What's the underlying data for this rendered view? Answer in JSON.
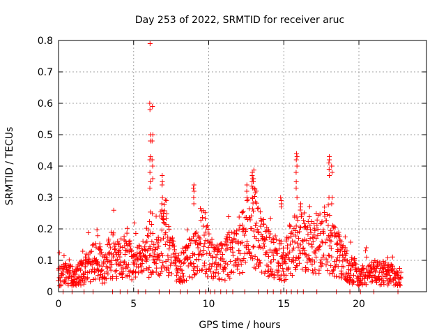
{
  "chart_data": {
    "type": "scatter",
    "title": "Day 253 of 2022, SRMTID for receiver aruc",
    "xlabel": "GPS time / hours",
    "ylabel": "SRMTID / TECUs",
    "xlim": [
      0,
      24.5
    ],
    "ylim": [
      0,
      0.8
    ],
    "xticks": [
      0,
      5,
      10,
      15,
      20
    ],
    "yticks": [
      0,
      0.1,
      0.2,
      0.3,
      0.4,
      0.5,
      0.6,
      0.7,
      0.8
    ],
    "xtick_labels": [
      "0",
      "5",
      "10",
      "15",
      "20"
    ],
    "ytick_labels": [
      "0",
      "0.1",
      "0.2",
      "0.3",
      "0.4",
      "0.5",
      "0.6",
      "0.7",
      "0.8"
    ],
    "grid": true,
    "marker": "+",
    "color": "#ff0000",
    "envelope": {
      "x": [
        0,
        0.5,
        1,
        1.5,
        2,
        2.5,
        3,
        3.5,
        4,
        4.5,
        5,
        5.5,
        6,
        6.3,
        6.6,
        7,
        7.5,
        8,
        8.5,
        9,
        9.5,
        10,
        10.5,
        11,
        11.5,
        12,
        12.5,
        13,
        13.5,
        14,
        14.5,
        15,
        15.5,
        16,
        16.5,
        17,
        17.5,
        18,
        18.5,
        19,
        19.5,
        20,
        20.5,
        21,
        21.5,
        22,
        22.5,
        22.8
      ],
      "y": [
        0.05,
        0.055,
        0.05,
        0.06,
        0.08,
        0.1,
        0.07,
        0.12,
        0.1,
        0.13,
        0.08,
        0.1,
        0.13,
        0.17,
        0.13,
        0.18,
        0.11,
        0.08,
        0.09,
        0.13,
        0.17,
        0.12,
        0.09,
        0.1,
        0.12,
        0.14,
        0.2,
        0.22,
        0.15,
        0.12,
        0.11,
        0.09,
        0.14,
        0.16,
        0.15,
        0.14,
        0.16,
        0.15,
        0.13,
        0.09,
        0.07,
        0.05,
        0.05,
        0.06,
        0.06,
        0.055,
        0.05,
        0.05
      ]
    },
    "spikes": [
      {
        "x": 6.1,
        "values": [
          0.79,
          0.6,
          0.58,
          0.5,
          0.48,
          0.43,
          0.42,
          0.38,
          0.35,
          0.33
        ]
      },
      {
        "x": 6.25,
        "values": [
          0.59,
          0.5,
          0.48,
          0.42,
          0.4,
          0.36
        ]
      },
      {
        "x": 6.9,
        "values": [
          0.37,
          0.35,
          0.34,
          0.3,
          0.28,
          0.26
        ]
      },
      {
        "x": 9.0,
        "values": [
          0.34,
          0.33,
          0.32,
          0.3,
          0.28
        ]
      },
      {
        "x": 12.9,
        "values": [
          0.38,
          0.37,
          0.36,
          0.35,
          0.33,
          0.3
        ]
      },
      {
        "x": 13.0,
        "values": [
          0.36,
          0.35,
          0.33
        ]
      },
      {
        "x": 14.8,
        "values": [
          0.3,
          0.29,
          0.28,
          0.27
        ]
      },
      {
        "x": 15.85,
        "values": [
          0.44,
          0.43,
          0.42,
          0.4,
          0.38,
          0.35,
          0.33,
          0.3
        ]
      },
      {
        "x": 16.1,
        "values": [
          0.28,
          0.27,
          0.26
        ]
      },
      {
        "x": 18.0,
        "values": [
          0.43,
          0.42,
          0.41,
          0.39,
          0.37,
          0.3
        ]
      },
      {
        "x": 18.2,
        "values": [
          0.4,
          0.38,
          0.3,
          0.28
        ]
      },
      {
        "x": 20.5,
        "values": [
          0.14
        ]
      },
      {
        "x": 12.55,
        "values": [
          0.34,
          0.32,
          0.3,
          0.29
        ]
      },
      {
        "x": 7.0,
        "values": [
          0.25,
          0.24,
          0.23
        ]
      }
    ],
    "zero_points_x": [
      0.3,
      0.9,
      1.7,
      2.3,
      3.6,
      4.1,
      4.6,
      5.3,
      5.8,
      6.7,
      7.4,
      8.1,
      8.6,
      9.4,
      9.8,
      10.1,
      10.4,
      10.8,
      11.2,
      11.6,
      12.4,
      13.3,
      13.9,
      14.3,
      14.8,
      15.2,
      15.5,
      15.9,
      16.3,
      17.2,
      18.5,
      19.4,
      20.1,
      21.0,
      22.6
    ]
  }
}
